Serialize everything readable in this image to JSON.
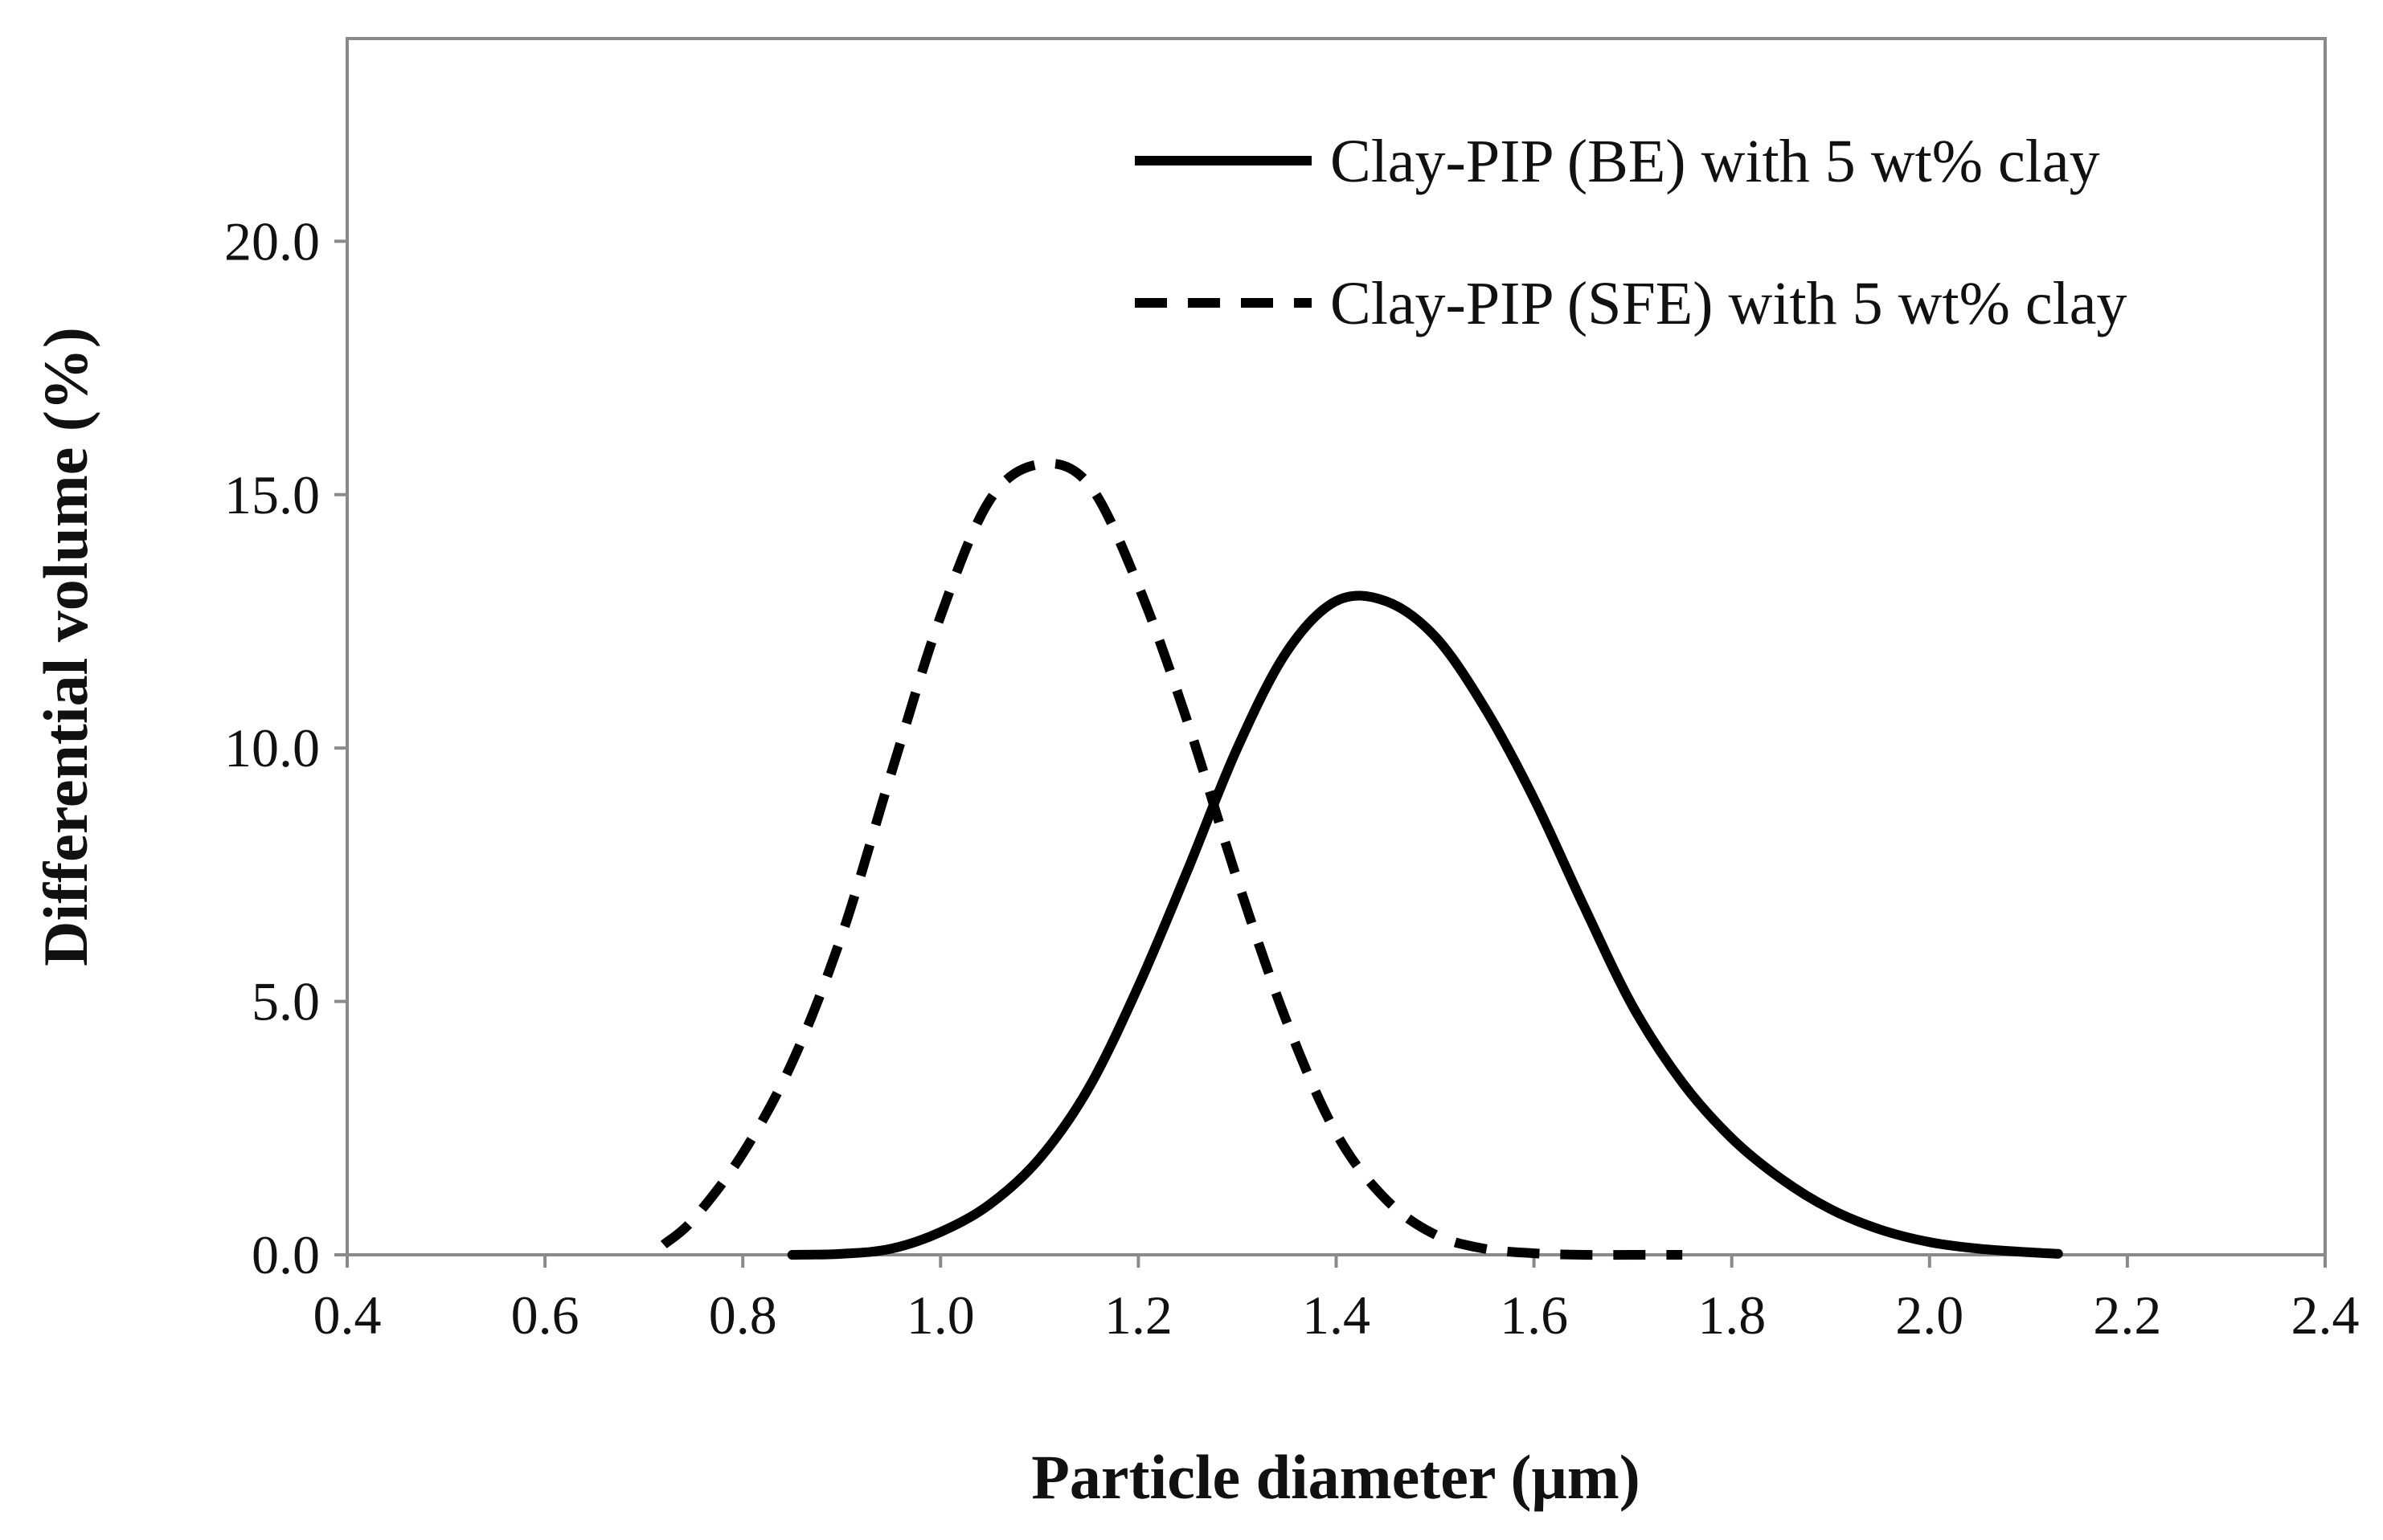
{
  "chart_data": {
    "type": "line",
    "title": "",
    "xlabel": "Particle diameter (μm)",
    "ylabel": "Differential volume (%)",
    "xlim": [
      0.4,
      2.4
    ],
    "ylim": [
      0,
      24
    ],
    "grid": false,
    "legend_position": "top-right",
    "x_ticks": [
      "0.4",
      "0.6",
      "0.8",
      "1.0",
      "1.2",
      "1.4",
      "1.6",
      "1.8",
      "2.0",
      "2.2",
      "2.4"
    ],
    "y_ticks": [
      "0.0",
      "5.0",
      "10.0",
      "15.0",
      "20.0"
    ],
    "series": [
      {
        "name": "Clay-PIP (BE) with 5 wt% clay",
        "style": "solid",
        "color": "#000000",
        "x": [
          0.85,
          0.9,
          0.95,
          1.0,
          1.05,
          1.1,
          1.15,
          1.2,
          1.25,
          1.3,
          1.35,
          1.4,
          1.45,
          1.5,
          1.55,
          1.6,
          1.65,
          1.7,
          1.75,
          1.8,
          1.85,
          1.9,
          1.95,
          2.0,
          2.05,
          2.1,
          2.13
        ],
        "y": [
          0.0,
          0.02,
          0.12,
          0.45,
          1.0,
          1.9,
          3.3,
          5.3,
          7.6,
          10.0,
          11.9,
          12.9,
          12.9,
          12.2,
          10.8,
          9.0,
          6.9,
          4.9,
          3.4,
          2.3,
          1.5,
          0.9,
          0.5,
          0.25,
          0.12,
          0.05,
          0.02
        ]
      },
      {
        "name": "Clay-PIP (SFE) with 5 wt% clay",
        "style": "dashed",
        "color": "#000000",
        "x": [
          0.72,
          0.75,
          0.8,
          0.85,
          0.9,
          0.95,
          1.0,
          1.05,
          1.1,
          1.15,
          1.2,
          1.25,
          1.3,
          1.35,
          1.4,
          1.45,
          1.5,
          1.55,
          1.6,
          1.65,
          1.7,
          1.75
        ],
        "y": [
          0.2,
          0.7,
          2.0,
          3.8,
          6.3,
          9.5,
          12.6,
          14.9,
          15.6,
          15.2,
          13.2,
          10.5,
          7.4,
          4.6,
          2.4,
          1.1,
          0.4,
          0.12,
          0.03,
          0.0,
          0.0,
          0.0
        ]
      }
    ]
  }
}
